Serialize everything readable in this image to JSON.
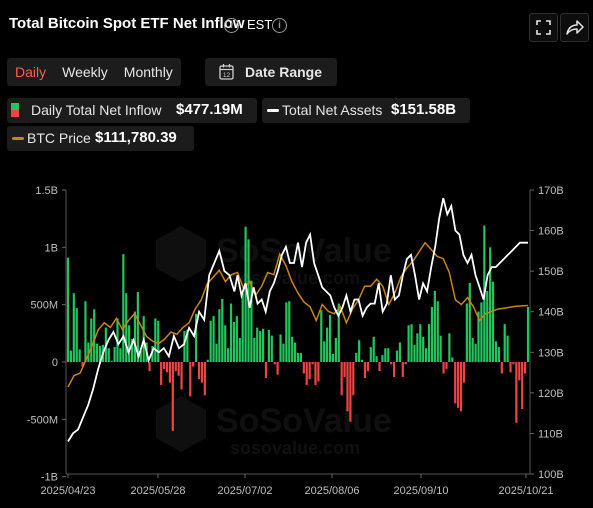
{
  "header": {
    "title": "Total Bitcoin Spot ETF Net Inflow",
    "timezone": "EST"
  },
  "tabs": [
    {
      "label": "Daily",
      "active": true
    },
    {
      "label": "Weekly",
      "active": false
    },
    {
      "label": "Monthly",
      "active": false
    }
  ],
  "date_range": {
    "label": "Date Range",
    "icon_text": "12"
  },
  "legend": {
    "inflow": {
      "label": "Daily Total Net Inflow",
      "value": "$477.19M"
    },
    "assets": {
      "label": "Total Net Assets",
      "value": "$151.58B"
    },
    "btc": {
      "label": "BTC Price",
      "value": "$111,780.39"
    }
  },
  "watermark": {
    "brand": "SoSoValue",
    "domain": "sosovalue.com"
  },
  "colors": {
    "positive": "#22c55e",
    "negative": "#ef4444",
    "assets_line": "#ffffff",
    "btc_line": "#c8850f",
    "tab_active": "#ff5d4b"
  },
  "chart_data": {
    "type": "bar",
    "x_ticks": [
      "2025/04/23",
      "2025/05/28",
      "2025/07/02",
      "2025/08/06",
      "2025/09/10",
      "2025/10/21"
    ],
    "y_left_ticks": [
      "1.5B",
      "1B",
      "500M",
      "0",
      "-500M",
      "-1B"
    ],
    "y_left_range": [
      -1000,
      1500
    ],
    "y_left_unit": "M",
    "y_right_ticks": [
      "170B",
      "160B",
      "150B",
      "140B",
      "130B",
      "120B",
      "110B",
      "100B"
    ],
    "y_right_range": [
      100,
      170
    ],
    "series": [
      {
        "name": "Daily Total Net Inflow",
        "type": "bar",
        "values": [
          910,
          100,
          600,
          470,
          110,
          -40,
          530,
          170,
          380,
          460,
          160,
          140,
          150,
          300,
          120,
          10,
          130,
          380,
          120,
          940,
          600,
          320,
          200,
          440,
          610,
          100,
          400,
          170,
          -80,
          140,
          380,
          360,
          -200,
          -60,
          -90,
          -180,
          -600,
          -80,
          -120,
          -240,
          270,
          280,
          -300,
          -40,
          420,
          -150,
          -180,
          -290,
          20,
          360,
          400,
          160,
          460,
          550,
          320,
          120,
          510,
          350,
          400,
          210,
          600,
          1180,
          1070,
          710,
          210,
          300,
          270,
          290,
          -140,
          280,
          230,
          -20,
          -110,
          240,
          160,
          520,
          530,
          220,
          170,
          80,
          80,
          -100,
          -200,
          -150,
          -20,
          -200,
          -170,
          450,
          180,
          300,
          410,
          70,
          210,
          510,
          -290,
          -130,
          -430,
          -520,
          -290,
          80,
          190,
          20,
          -140,
          -80,
          130,
          220,
          50,
          -80,
          60,
          120,
          120,
          -20,
          -130,
          100,
          170,
          -130,
          -20,
          320,
          330,
          150,
          250,
          330,
          220,
          120,
          330,
          480,
          620,
          530,
          230,
          -100,
          -60,
          250,
          40,
          -360,
          -400,
          -430,
          -180,
          510,
          690,
          210,
          160,
          440,
          520,
          1190,
          620,
          1000,
          700,
          180,
          130,
          -100,
          330,
          230,
          -90,
          -20,
          -530,
          -160,
          -410,
          -100,
          480
        ]
      },
      {
        "name": "Total Net Assets",
        "type": "line",
        "points_x": [
          0,
          5,
          10,
          15,
          20,
          25,
          30,
          35,
          40,
          45,
          50,
          55,
          60,
          65,
          70,
          75,
          80,
          85,
          90,
          95,
          100,
          105,
          110,
          115,
          120,
          125,
          130,
          135,
          140,
          145,
          150,
          155,
          160,
          165,
          168,
          172,
          176,
          180,
          184,
          188,
          192,
          196,
          200,
          204,
          208,
          212,
          216,
          220,
          224,
          228,
          232,
          236,
          240,
          244,
          248,
          252,
          256,
          260,
          264,
          268,
          272,
          276,
          280,
          284,
          288,
          292,
          296,
          300,
          304,
          308,
          312,
          316,
          320,
          324,
          328,
          332,
          336,
          340,
          344,
          348,
          352,
          356,
          360,
          364,
          368,
          372,
          376,
          380,
          384,
          388,
          392,
          396,
          400,
          404,
          408,
          412,
          416,
          420,
          424,
          428,
          432,
          436,
          440,
          444,
          448,
          452,
          456
        ],
        "values": [
          108,
          110,
          111,
          114,
          117,
          121,
          126,
          130,
          133,
          135,
          132,
          134,
          130,
          133,
          129,
          133,
          128,
          131,
          130,
          131,
          129,
          134,
          131,
          132,
          136,
          134,
          140,
          138,
          149,
          152,
          155,
          150,
          149,
          145,
          149,
          144,
          147,
          141,
          146,
          142,
          143,
          140,
          145,
          147,
          150,
          154,
          156,
          152,
          152,
          157,
          151,
          157,
          159,
          152,
          149,
          146,
          145,
          144,
          141,
          139,
          141,
          144,
          140,
          143,
          143,
          139,
          141,
          142,
          142,
          147,
          140,
          142,
          149,
          143,
          144,
          149,
          153,
          154,
          149,
          143,
          147,
          145,
          151,
          156,
          163,
          168,
          164,
          166,
          160,
          159,
          154,
          152,
          154,
          149,
          146,
          143,
          149,
          151,
          151,
          152,
          153,
          154,
          155,
          156,
          157,
          157,
          157
        ]
      },
      {
        "name": "BTC Price",
        "type": "line",
        "points_x": [
          0,
          6,
          12,
          18,
          24,
          30,
          36,
          42,
          48,
          54,
          60,
          66,
          72,
          78,
          84,
          90,
          96,
          102,
          108,
          114,
          120,
          126,
          132,
          138,
          144,
          150,
          156,
          162,
          168,
          174,
          180,
          186,
          192,
          198,
          204,
          210,
          216,
          222,
          228,
          234,
          240,
          246,
          252,
          258,
          264,
          270,
          276,
          282,
          288,
          294,
          300,
          306,
          312,
          318,
          324,
          330,
          336,
          342,
          348,
          354,
          360,
          366,
          372,
          378,
          384,
          390,
          396,
          402,
          408,
          414,
          420,
          426,
          432,
          438,
          444,
          450,
          456
        ],
        "values": [
          94000,
          96500,
          97000,
          100000,
          103000,
          106500,
          108000,
          107000,
          109000,
          106500,
          108500,
          110000,
          107500,
          105000,
          104000,
          103500,
          104500,
          106000,
          105500,
          107000,
          108000,
          111000,
          113000,
          116500,
          118000,
          119500,
          117000,
          118500,
          119000,
          115500,
          117000,
          114000,
          116000,
          119000,
          118500,
          123000,
          120500,
          117000,
          114500,
          112500,
          111500,
          108500,
          112000,
          110500,
          110000,
          111500,
          108000,
          111000,
          113000,
          116000,
          116000,
          117500,
          116000,
          112000,
          114500,
          118000,
          120000,
          121500,
          123500,
          125500,
          124000,
          122500,
          122000,
          119000,
          113000,
          112000,
          113500,
          111500,
          108500,
          110000,
          110500,
          111000,
          111200,
          111400,
          111600,
          111700,
          111780
        ]
      }
    ]
  }
}
